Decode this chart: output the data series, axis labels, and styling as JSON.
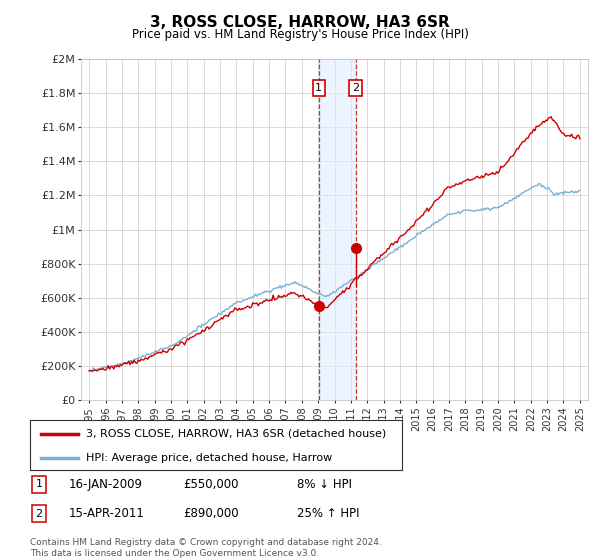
{
  "title": "3, ROSS CLOSE, HARROW, HA3 6SR",
  "subtitle": "Price paid vs. HM Land Registry's House Price Index (HPI)",
  "property_label": "3, ROSS CLOSE, HARROW, HA3 6SR (detached house)",
  "hpi_label": "HPI: Average price, detached house, Harrow",
  "property_color": "#cc0000",
  "hpi_color": "#7ab0d4",
  "transaction1_date": "16-JAN-2009",
  "transaction1_price": 550000,
  "transaction1_note": "8% ↓ HPI",
  "transaction2_date": "15-APR-2011",
  "transaction2_price": 890000,
  "transaction2_note": "25% ↑ HPI",
  "transaction1_x": 2009.04,
  "transaction2_x": 2011.29,
  "highlight_color": "#ddeeff",
  "highlight_alpha": 0.55,
  "vline_color": "#cc0000",
  "footer": "Contains HM Land Registry data © Crown copyright and database right 2024.\nThis data is licensed under the Open Government Licence v3.0.",
  "ylim": [
    0,
    2000000
  ],
  "xlim": [
    1994.5,
    2025.5
  ],
  "yticks": [
    0,
    200000,
    400000,
    600000,
    800000,
    1000000,
    1200000,
    1400000,
    1600000,
    1800000,
    2000000
  ],
  "ytick_labels": [
    "£0",
    "£200K",
    "£400K",
    "£600K",
    "£800K",
    "£1M",
    "£1.2M",
    "£1.4M",
    "£1.6M",
    "£1.8M",
    "£2M"
  ],
  "background_color": "#ffffff",
  "grid_color": "#cccccc"
}
